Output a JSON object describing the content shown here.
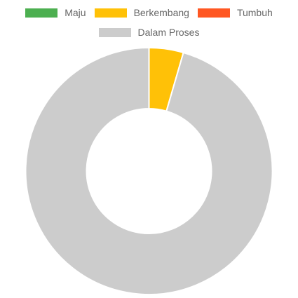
{
  "chart_data": {
    "type": "pie",
    "variant": "doughnut",
    "title": "",
    "legend_position": "top",
    "labels": [
      "Maju",
      "Berkembang",
      "Tumbuh",
      "Dalam Proses"
    ],
    "values": [
      0,
      4.5,
      0,
      95.5
    ],
    "colors": [
      "#4caf50",
      "#ffc107",
      "#ff5722",
      "#cccccc"
    ]
  }
}
